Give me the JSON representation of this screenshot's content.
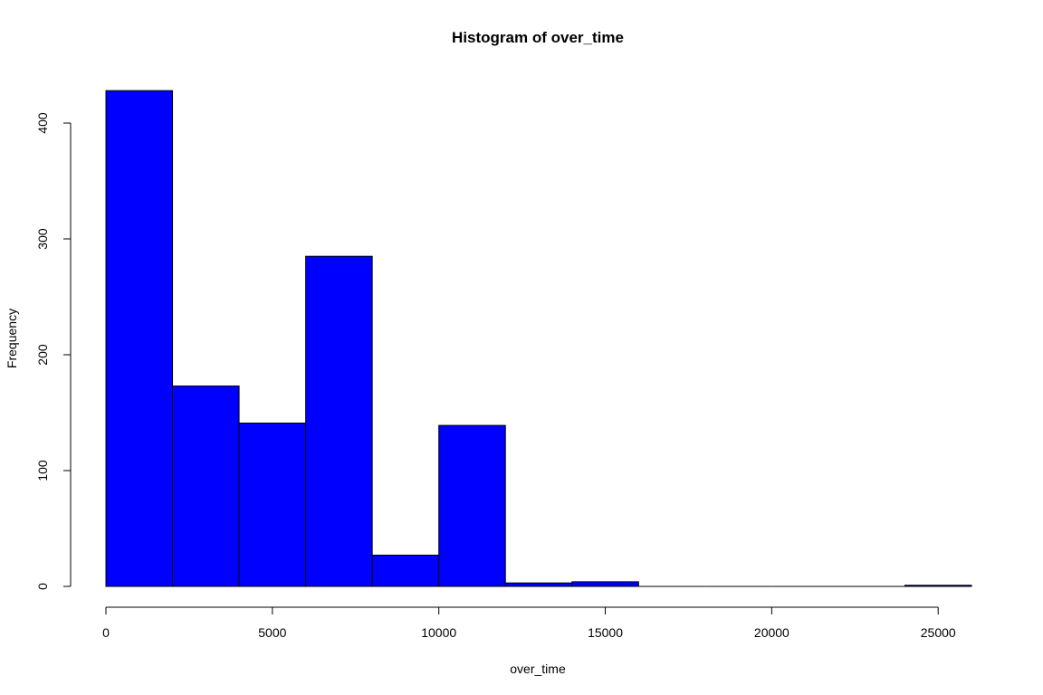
{
  "chart_data": {
    "type": "bar",
    "title": "Histogram of over_time",
    "xlabel": "over_time",
    "ylabel": "Frequency",
    "bar_color": "#0000ff",
    "bar_edge_color": "#000000",
    "bin_edges": [
      0,
      2000,
      4000,
      6000,
      8000,
      10000,
      12000,
      14000,
      16000,
      18000,
      20000,
      22000,
      24000,
      26000
    ],
    "values": [
      428,
      173,
      141,
      285,
      27,
      139,
      3,
      4,
      0,
      0,
      0,
      0,
      1
    ],
    "xlim": [
      0,
      26000
    ],
    "ylim": [
      0,
      430
    ],
    "x_ticks": [
      0,
      5000,
      10000,
      15000,
      20000,
      25000
    ],
    "x_tick_labels": [
      "0",
      "5000",
      "10000",
      "15000",
      "20000",
      "25000"
    ],
    "y_ticks": [
      0,
      100,
      200,
      300,
      400
    ],
    "y_tick_labels": [
      "0",
      "100",
      "200",
      "300",
      "400"
    ],
    "grid": false
  }
}
